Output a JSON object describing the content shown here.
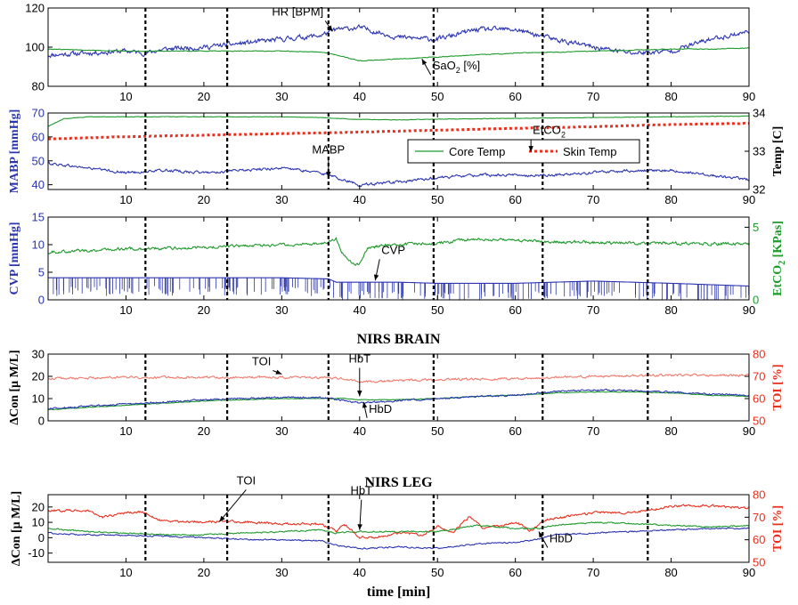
{
  "colors": {
    "blue": "#2b35b0",
    "green": "#1f9a2c",
    "red": "#e8301e",
    "pink": "#f27a6c",
    "black": "#000000"
  },
  "chart_data": [
    {
      "type": "line",
      "panel": "hemodynamics",
      "xlim": [
        0,
        90
      ],
      "ylim": [
        80,
        120
      ],
      "yticks": [
        80,
        100,
        120
      ],
      "xticks": [
        10,
        20,
        30,
        40,
        50,
        60,
        70,
        80,
        90
      ],
      "grid": false,
      "vlines": [
        12.5,
        23,
        36,
        49.5,
        63.5,
        77
      ],
      "series": [
        {
          "name": "HR [BPM]",
          "axis": "left",
          "color": "#2b35b0",
          "x": [
            0,
            5,
            10,
            12.5,
            15,
            20,
            25,
            30,
            35,
            37,
            40,
            45,
            50,
            55,
            60,
            65,
            70,
            75,
            80,
            85,
            90
          ],
          "values": [
            96,
            97,
            98,
            97,
            99,
            100,
            102,
            104,
            106,
            109,
            110,
            105,
            104,
            109,
            109,
            104,
            100,
            97,
            98,
            104,
            108
          ]
        },
        {
          "name": "SaO2 [%]",
          "axis": "left",
          "color": "#1f9a2c",
          "x": [
            0,
            5,
            10,
            15,
            20,
            25,
            30,
            35,
            37,
            40,
            45,
            50,
            55,
            60,
            65,
            70,
            75,
            80,
            85,
            90
          ],
          "values": [
            99,
            98.5,
            98,
            98,
            98,
            98,
            98,
            97.5,
            96,
            93,
            94,
            95,
            96,
            97,
            97.5,
            98,
            98.5,
            99,
            99,
            99.5
          ]
        }
      ],
      "annotations": [
        {
          "text": "HR [BPM]",
          "target": [
            36.5,
            108
          ]
        },
        {
          "text": "SaO",
          "sub": "2",
          "suffix": " [%]",
          "target": [
            48,
            94
          ]
        }
      ]
    },
    {
      "type": "line",
      "panel": "pressure-temperature",
      "xlim": [
        0,
        90
      ],
      "ylim": [
        38,
        70
      ],
      "yticks": [
        40,
        50,
        60,
        70
      ],
      "ylabel": "MABP [mmHg]",
      "y2lim": [
        32,
        34
      ],
      "y2ticks": [
        32,
        33,
        34
      ],
      "y2label": "Temp [C]",
      "xticks": [
        10,
        20,
        30,
        40,
        50,
        60,
        70,
        80,
        90
      ],
      "grid": false,
      "legend": {
        "placement": "center-right",
        "entries": [
          "Core Temp",
          "Skin Temp"
        ]
      },
      "vlines": [
        12.5,
        23,
        36,
        49.5,
        63.5,
        77
      ],
      "series": [
        {
          "name": "MABP",
          "axis": "left",
          "color": "#2b35b0",
          "x": [
            0,
            5,
            10,
            15,
            20,
            25,
            30,
            35,
            38,
            40,
            45,
            50,
            55,
            60,
            65,
            70,
            75,
            80,
            85,
            90
          ],
          "values": [
            49,
            47,
            45,
            46,
            45,
            46,
            47,
            45,
            42,
            40,
            41,
            43,
            44,
            44,
            44,
            45,
            46,
            46,
            44,
            42
          ]
        },
        {
          "name": "Core Temp",
          "axis": "right",
          "color": "#1f9a2c",
          "x": [
            0,
            2,
            5,
            10,
            20,
            30,
            35,
            40,
            45,
            50,
            60,
            70,
            80,
            90
          ],
          "values": [
            33.65,
            33.85,
            33.9,
            33.9,
            33.9,
            33.9,
            33.88,
            33.83,
            33.82,
            33.84,
            33.86,
            33.88,
            33.9,
            33.92
          ]
        },
        {
          "name": "Skin Temp",
          "axis": "right",
          "color": "#e8301e",
          "x": [
            0,
            10,
            20,
            30,
            40,
            50,
            60,
            70,
            80,
            90
          ],
          "values": [
            33.32,
            33.38,
            33.42,
            33.46,
            33.5,
            33.55,
            33.6,
            33.64,
            33.7,
            33.73
          ]
        }
      ],
      "annotations": [
        {
          "text": "MABP",
          "target": [
            36,
            43
          ]
        }
      ]
    },
    {
      "type": "line",
      "panel": "cvp-etco2",
      "xlim": [
        0,
        90
      ],
      "ylim": [
        0,
        15
      ],
      "yticks": [
        0,
        5,
        10,
        15
      ],
      "ylabel": "CVP [mmHg]",
      "y2lim": [
        0,
        5.7
      ],
      "y2ticks": [
        0,
        5
      ],
      "y2label": "EtCO",
      "y2label_sub": "2",
      "y2label_suffix": " [KPas]",
      "xticks": [
        10,
        20,
        30,
        40,
        50,
        60,
        70,
        80,
        90
      ],
      "grid": false,
      "vlines": [
        12.5,
        23,
        36,
        49.5,
        63.5,
        77
      ],
      "series": [
        {
          "name": "CVP",
          "axis": "left",
          "color": "#2b35b0",
          "x": [
            0,
            10,
            20,
            30,
            36,
            37,
            45,
            50,
            60,
            70,
            80,
            90
          ],
          "values": [
            4,
            4,
            4,
            4,
            3.8,
            3.2,
            3.2,
            3,
            3,
            3.4,
            3,
            2.5
          ]
        },
        {
          "name": "EtCO2",
          "axis": "right",
          "color": "#1f9a2c",
          "x": [
            0,
            5,
            10,
            15,
            20,
            25,
            30,
            35,
            37,
            38,
            39,
            40,
            41,
            43,
            45,
            50,
            55,
            60,
            65,
            70,
            75,
            80,
            85,
            90
          ],
          "values": [
            3.3,
            3.4,
            3.5,
            3.55,
            3.6,
            3.7,
            3.8,
            3.85,
            4.2,
            3,
            2.5,
            2.5,
            3.5,
            3.8,
            3.8,
            3.9,
            4.2,
            4.1,
            4,
            3.95,
            3.9,
            3.9,
            3.85,
            3.9
          ]
        }
      ],
      "annotations": [
        {
          "text": "CVP",
          "target": [
            42,
            3.5
          ]
        },
        {
          "text": "EtCO",
          "sub": "2",
          "target": [
            62,
            10.2
          ]
        }
      ]
    },
    {
      "type": "line",
      "panel": "nirs-brain",
      "title": "NIRS BRAIN",
      "xlim": [
        0,
        90
      ],
      "ylim": [
        0,
        30
      ],
      "yticks": [
        0,
        10,
        20,
        30
      ],
      "ylabel": "ΔCon [μ M/L]",
      "y2lim": [
        50,
        80
      ],
      "y2ticks": [
        50,
        60,
        70,
        80
      ],
      "y2label": "TOI [%]",
      "xticks": [
        10,
        20,
        30,
        40,
        50,
        60,
        70,
        80,
        90
      ],
      "grid": false,
      "vlines": [
        12.5,
        23,
        36,
        49.5,
        63.5,
        77
      ],
      "series": [
        {
          "name": "TOI",
          "axis": "right",
          "color": "#f27a6c",
          "x": [
            0,
            10,
            20,
            30,
            35,
            38,
            40,
            45,
            50,
            60,
            70,
            80,
            90
          ],
          "values": [
            69,
            69.5,
            69.5,
            69.5,
            69.5,
            69,
            67.5,
            68,
            68.5,
            69,
            70,
            70.5,
            70.5
          ]
        },
        {
          "name": "HbT",
          "axis": "left",
          "color": "#1f9a2c",
          "x": [
            0,
            5,
            10,
            15,
            20,
            25,
            30,
            35,
            38,
            40,
            45,
            50,
            55,
            60,
            65,
            70,
            75,
            80,
            85,
            90
          ],
          "values": [
            5,
            6,
            7,
            8,
            9,
            9.5,
            10,
            10,
            10,
            9.5,
            9.5,
            10,
            11,
            11.5,
            12.5,
            13,
            13,
            12.5,
            11.5,
            11
          ]
        },
        {
          "name": "HbD",
          "axis": "left",
          "color": "#2b35b0",
          "x": [
            0,
            5,
            10,
            15,
            20,
            25,
            30,
            35,
            38,
            40,
            45,
            50,
            55,
            60,
            65,
            70,
            75,
            80,
            85,
            90
          ],
          "values": [
            5.5,
            6.5,
            7.5,
            8.5,
            9.5,
            10,
            10.5,
            10.5,
            9,
            8,
            9,
            10,
            11,
            11.5,
            13,
            14,
            13.5,
            13,
            12,
            11.5
          ]
        }
      ],
      "annotations": [
        {
          "text": "TOI",
          "target": [
            30,
            71
          ]
        },
        {
          "text": "HbT",
          "target": [
            40,
            11
          ]
        },
        {
          "text": "HbD",
          "target": [
            40.5,
            8.5
          ]
        }
      ]
    },
    {
      "type": "line",
      "panel": "nirs-leg",
      "title": "NIRS LEG",
      "xlim": [
        0,
        90
      ],
      "ylim": [
        -16,
        28
      ],
      "yticks": [
        -10,
        0,
        10,
        20
      ],
      "ylabel": "ΔCon [μ M/L]",
      "y2lim": [
        50,
        80
      ],
      "y2ticks": [
        50,
        60,
        70,
        80
      ],
      "y2label": "TOI [%]",
      "xticks": [
        10,
        20,
        30,
        40,
        50,
        60,
        70,
        80,
        90
      ],
      "xlabel": "time [min]",
      "grid": false,
      "vlines": [
        12.5,
        23,
        36,
        49.5,
        63.5,
        77
      ],
      "series": [
        {
          "name": "TOI",
          "axis": "right",
          "color": "#e8301e",
          "x": [
            0,
            5,
            7,
            10,
            12,
            14,
            16,
            20,
            25,
            30,
            35,
            37,
            38,
            40,
            42,
            45,
            48,
            50,
            52,
            54,
            56,
            58,
            60,
            62,
            64,
            66,
            70,
            75,
            80,
            85,
            90
          ],
          "values": [
            73,
            73,
            70,
            72,
            72.5,
            69,
            68,
            68,
            68,
            67,
            67,
            64,
            67,
            61,
            61,
            63,
            62,
            66,
            63,
            70,
            65,
            66,
            68,
            64,
            69,
            70,
            72,
            72,
            75,
            75,
            74
          ]
        },
        {
          "name": "HbT",
          "axis": "left",
          "color": "#1f9a2c",
          "x": [
            0,
            5,
            10,
            15,
            20,
            25,
            30,
            35,
            37,
            40,
            45,
            50,
            55,
            60,
            63,
            65,
            70,
            75,
            80,
            85,
            90
          ],
          "values": [
            6,
            4,
            3,
            2,
            2,
            3,
            4,
            5,
            3,
            4,
            4,
            4,
            8,
            6,
            6,
            8,
            10,
            9,
            8,
            7,
            8
          ]
        },
        {
          "name": "HbD",
          "axis": "left",
          "color": "#2b35b0",
          "x": [
            0,
            5,
            10,
            15,
            20,
            25,
            30,
            35,
            37,
            40,
            45,
            50,
            55,
            60,
            63,
            65,
            70,
            75,
            80,
            85,
            90
          ],
          "values": [
            3,
            2,
            1.5,
            1,
            0,
            -1,
            -1.5,
            -2,
            -5,
            -7,
            -6,
            -7,
            -4,
            -3,
            -1,
            2,
            3,
            4,
            5,
            6,
            6
          ]
        }
      ],
      "annotations": [
        {
          "text": "TOI",
          "target": [
            22,
            68
          ]
        },
        {
          "text": "HbT",
          "target": [
            40,
            5
          ]
        },
        {
          "text": "HbD",
          "target": [
            63,
            4
          ]
        }
      ]
    }
  ]
}
